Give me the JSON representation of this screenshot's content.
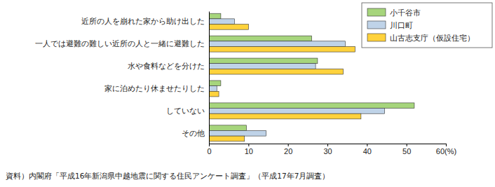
{
  "chart_data": {
    "type": "bar",
    "orientation": "horizontal",
    "categories": [
      "近所の人を崩れた家から助け出した",
      "一人では避難の難しい近所の人と一緒に避難した",
      "水や食料などを分けた",
      "家に泊めたり休ませたりした",
      "していない",
      "その他"
    ],
    "series": [
      {
        "name": "小千谷市",
        "color": "#a6d57c",
        "values": [
          3,
          26,
          27.5,
          3,
          52,
          9.5
        ]
      },
      {
        "name": "川口町",
        "color": "#bfd3e8",
        "values": [
          6.5,
          34.5,
          27,
          2,
          44.5,
          14.5
        ]
      },
      {
        "name": "山古志支庁（仮設住宅）",
        "color": "#ffd23c",
        "values": [
          10,
          37,
          34,
          2.5,
          38.5,
          9
        ]
      }
    ],
    "xlim": [
      0,
      60
    ],
    "xticks": [
      0,
      10,
      20,
      30,
      40,
      50,
      {
        "value": 60,
        "label": "60(%)"
      }
    ],
    "grid": false,
    "legend": "top-right",
    "source": "資料）内閣府「平成16年新潟県中越地震に関する住民アンケート調査」（平成17年7月調査）"
  }
}
